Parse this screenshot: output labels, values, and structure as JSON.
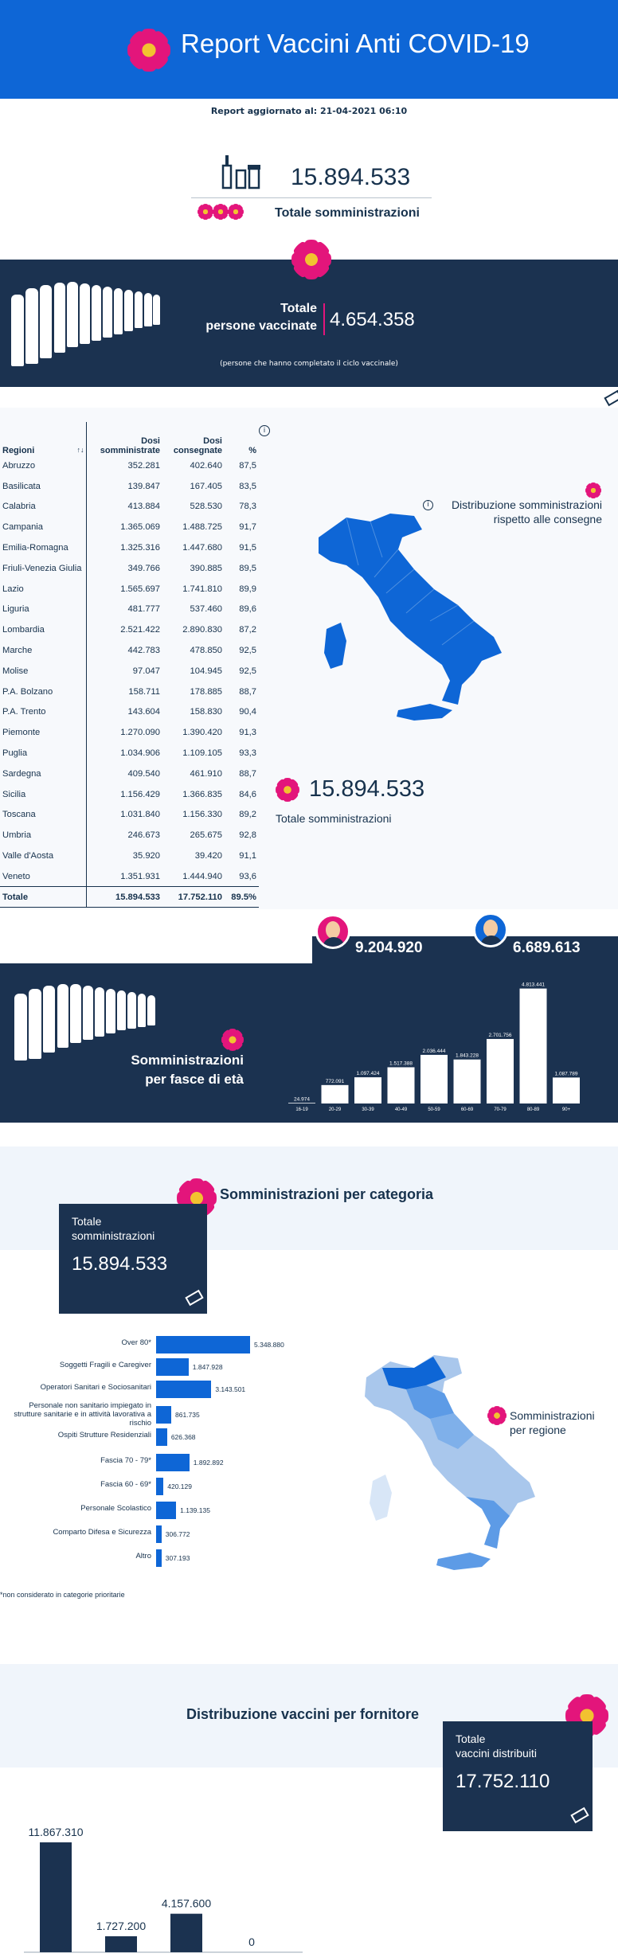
{
  "header": {
    "title": "Report Vaccini Anti COVID-19"
  },
  "updated": "Report aggiornato al: 21-04-2021 06:10",
  "totals": {
    "administrations": "15.894.533",
    "administrations_label": "Totale somministrazioni",
    "vaccinated_label_1": "Totale",
    "vaccinated_label_2": "persone vaccinate",
    "vaccinated_value": "4.654.358",
    "vaccinated_note": "(persone che hanno completato il ciclo vaccinale)"
  },
  "regions_table": {
    "headers": {
      "region": "Regioni",
      "dosi1": "Dosi",
      "somm": "somministrate",
      "dosi2": "Dosi",
      "cons": "consegnate",
      "pct": "%"
    },
    "rows": [
      [
        "Abruzzo",
        "352.281",
        "402.640",
        "87,5"
      ],
      [
        "Basilicata",
        "139.847",
        "167.405",
        "83,5"
      ],
      [
        "Calabria",
        "413.884",
        "528.530",
        "78,3"
      ],
      [
        "Campania",
        "1.365.069",
        "1.488.725",
        "91,7"
      ],
      [
        "Emilia-Romagna",
        "1.325.316",
        "1.447.680",
        "91,5"
      ],
      [
        "Friuli-Venezia Giulia",
        "349.766",
        "390.885",
        "89,5"
      ],
      [
        "Lazio",
        "1.565.697",
        "1.741.810",
        "89,9"
      ],
      [
        "Liguria",
        "481.777",
        "537.460",
        "89,6"
      ],
      [
        "Lombardia",
        "2.521.422",
        "2.890.830",
        "87,2"
      ],
      [
        "Marche",
        "442.783",
        "478.850",
        "92,5"
      ],
      [
        "Molise",
        "97.047",
        "104.945",
        "92,5"
      ],
      [
        "P.A. Bolzano",
        "158.711",
        "178.885",
        "88,7"
      ],
      [
        "P.A. Trento",
        "143.604",
        "158.830",
        "90,4"
      ],
      [
        "Piemonte",
        "1.270.090",
        "1.390.420",
        "91,3"
      ],
      [
        "Puglia",
        "1.034.906",
        "1.109.105",
        "93,3"
      ],
      [
        "Sardegna",
        "409.540",
        "461.910",
        "88,7"
      ],
      [
        "Sicilia",
        "1.156.429",
        "1.366.835",
        "84,6"
      ],
      [
        "Toscana",
        "1.031.840",
        "1.156.330",
        "89,2"
      ],
      [
        "Umbria",
        "246.673",
        "265.675",
        "92,8"
      ],
      [
        "Valle d'Aosta",
        "35.920",
        "39.420",
        "91,1"
      ],
      [
        "Veneto",
        "1.351.931",
        "1.444.940",
        "93,6"
      ]
    ],
    "total": [
      "Totale",
      "15.894.533",
      "17.752.110",
      "89.5%"
    ]
  },
  "map1": {
    "title_1": "Distribuzione somministrazioni",
    "title_2": "rispetto alle consegne",
    "total": "15.894.533",
    "total_label": "Totale somministrazioni"
  },
  "gender": {
    "women": "9.204.920",
    "men": "6.689.613"
  },
  "age": {
    "title_1": "Somministrazioni",
    "title_2": "per fasce di età"
  },
  "category": {
    "title": "Somministrazioni per categoria",
    "box_label_1": "Totale",
    "box_label_2": "somministrazioni",
    "box_value": "15.894.533",
    "footnote": "*non considerato in categorie prioritarie",
    "map_label_1": "Somministrazioni",
    "map_label_2": "per regione"
  },
  "supplier": {
    "title": "Distribuzione vaccini per fornitore",
    "box_label_1": "Totale",
    "box_label_2": "vaccini distribuiti",
    "box_value": "17.752.110"
  },
  "chart_data": [
    {
      "type": "bar",
      "categories": [
        "16-19",
        "20-29",
        "30-39",
        "40-49",
        "50-59",
        "60-69",
        "70-79",
        "80-89",
        "90+"
      ],
      "values": [
        24974,
        772091,
        1097424,
        1517388,
        2036444,
        1843228,
        2701756,
        4813441,
        1087789
      ],
      "labels": [
        "24.974",
        "772.091",
        "1.097.424",
        "1.517.388",
        "2.036.444",
        "1.843.228",
        "2.701.756",
        "4.813.441",
        "1.087.789"
      ]
    },
    {
      "type": "bar",
      "categories": [
        "Over 80*",
        "Soggetti Fragili e Caregiver",
        "Operatori Sanitari e Sociosanitari",
        "Personale non sanitario impiegato in strutture sanitarie e in attività lavorativa a rischio",
        "Ospiti Strutture Residenziali",
        "Fascia 70 - 79*",
        "Fascia 60 - 69*",
        "Personale Scolastico",
        "Comparto Difesa e Sicurezza",
        "Altro"
      ],
      "values": [
        5348880,
        1847928,
        3143501,
        861735,
        626368,
        1892892,
        420129,
        1139135,
        306772,
        307193
      ],
      "labels": [
        "5.348.880",
        "1.847.928",
        "3.143.501",
        "861.735",
        "626.368",
        "1.892.892",
        "420.129",
        "1.139.135",
        "306.772",
        "307.193"
      ]
    },
    {
      "type": "bar",
      "values": [
        11867310,
        1727200,
        4157600,
        0
      ],
      "labels": [
        "11.867.310",
        "1.727.200",
        "4.157.600",
        "0"
      ]
    }
  ]
}
